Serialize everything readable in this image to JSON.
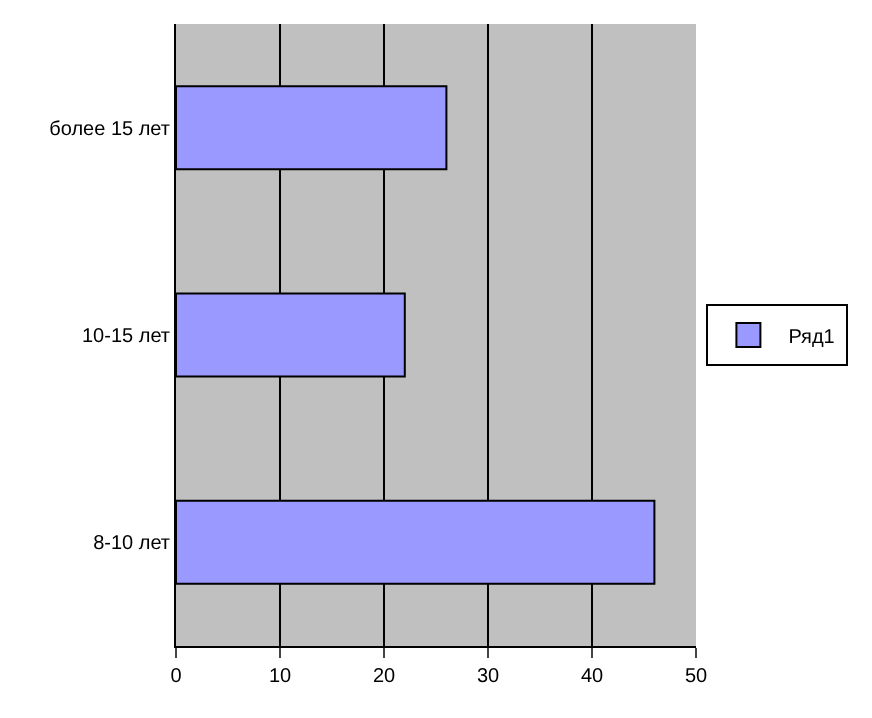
{
  "chart_data": {
    "type": "bar",
    "orientation": "horizontal",
    "categories": [
      "более 15 лет",
      "10-15 лет",
      "8-10 лет"
    ],
    "series": [
      {
        "name": "Ряд1",
        "color": "#9999ff",
        "values": [
          26,
          22,
          46
        ]
      }
    ],
    "xlim": [
      0,
      50
    ],
    "xticks": [
      0,
      10,
      20,
      30,
      40,
      50
    ],
    "grid": "x",
    "legend": "right"
  }
}
